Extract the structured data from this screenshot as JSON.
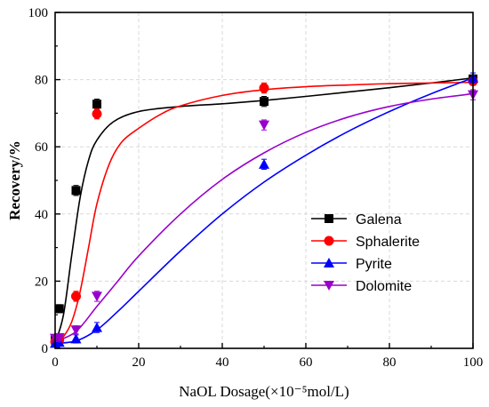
{
  "chart_data": {
    "type": "scatter",
    "xlabel": "NaOL Dosage(×10⁻⁵mol/L)",
    "ylabel": "Recovery/%",
    "xlim": [
      0,
      100
    ],
    "ylim": [
      0,
      100
    ],
    "xticks": [
      0,
      20,
      40,
      60,
      80,
      100
    ],
    "yticks": [
      0,
      20,
      40,
      60,
      80,
      100
    ],
    "grid": true,
    "legend_position": "center-right",
    "series": [
      {
        "name": "Galena",
        "color": "#000000",
        "marker": "square",
        "x": [
          0,
          1,
          5,
          10,
          50,
          100
        ],
        "y": [
          2.5,
          11.8,
          47.0,
          72.7,
          73.5,
          80.2
        ],
        "err": [
          1.0,
          1.2,
          1.5,
          1.5,
          1.5,
          1.2
        ],
        "fit": [
          [
            0,
            1.5
          ],
          [
            2,
            10
          ],
          [
            4,
            28
          ],
          [
            6,
            45
          ],
          [
            8,
            56
          ],
          [
            10,
            62
          ],
          [
            14,
            67.5
          ],
          [
            20,
            70.5
          ],
          [
            30,
            72
          ],
          [
            40,
            72.8
          ],
          [
            50,
            73.8
          ],
          [
            60,
            75
          ],
          [
            70,
            76.3
          ],
          [
            80,
            77.6
          ],
          [
            90,
            79
          ],
          [
            100,
            80.5
          ]
        ]
      },
      {
        "name": "Sphalerite",
        "color": "#ff0000",
        "marker": "circle",
        "x": [
          0,
          1,
          5,
          10,
          50,
          100
        ],
        "y": [
          2.0,
          2.5,
          15.5,
          69.8,
          77.5,
          79.5
        ],
        "err": [
          1.0,
          1.0,
          1.5,
          1.5,
          1.5,
          1.2
        ],
        "fit": [
          [
            0,
            1.5
          ],
          [
            2,
            3.5
          ],
          [
            4,
            8
          ],
          [
            6,
            17
          ],
          [
            8,
            30
          ],
          [
            10,
            43
          ],
          [
            13,
            55
          ],
          [
            16,
            61.5
          ],
          [
            20,
            65.5
          ],
          [
            25,
            69.5
          ],
          [
            30,
            72.2
          ],
          [
            40,
            75.3
          ],
          [
            50,
            77
          ],
          [
            60,
            77.9
          ],
          [
            70,
            78.4
          ],
          [
            80,
            78.8
          ],
          [
            90,
            79
          ],
          [
            100,
            79.2
          ]
        ]
      },
      {
        "name": "Pyrite",
        "color": "#0000ff",
        "marker": "triangle-up",
        "x": [
          0,
          1,
          5,
          10,
          50,
          100
        ],
        "y": [
          1.5,
          1.8,
          2.8,
          6.2,
          54.8,
          80.5
        ],
        "err": [
          0.8,
          0.8,
          1.2,
          1.5,
          1.5,
          1.5
        ],
        "fit": [
          [
            0,
            1.5
          ],
          [
            5,
            2.2
          ],
          [
            10,
            5.5
          ],
          [
            15,
            11
          ],
          [
            20,
            17
          ],
          [
            30,
            29
          ],
          [
            40,
            40
          ],
          [
            50,
            49.5
          ],
          [
            60,
            57.5
          ],
          [
            70,
            64.5
          ],
          [
            80,
            70.5
          ],
          [
            90,
            75.8
          ],
          [
            100,
            80.5
          ]
        ]
      },
      {
        "name": "Dolomite",
        "color": "#9900cc",
        "marker": "triangle-down",
        "x": [
          0,
          1,
          5,
          10,
          50,
          100
        ],
        "y": [
          3.0,
          3.2,
          5.5,
          15.5,
          66.5,
          75.5
        ],
        "err": [
          1.0,
          1.0,
          1.2,
          1.5,
          1.5,
          1.5
        ],
        "fit": [
          [
            0,
            2
          ],
          [
            5,
            5
          ],
          [
            10,
            12.5
          ],
          [
            15,
            20
          ],
          [
            20,
            27.5
          ],
          [
            30,
            40
          ],
          [
            40,
            50.3
          ],
          [
            50,
            58.2
          ],
          [
            60,
            64.3
          ],
          [
            70,
            68.8
          ],
          [
            80,
            72
          ],
          [
            90,
            74.2
          ],
          [
            100,
            75.8
          ]
        ]
      }
    ]
  }
}
